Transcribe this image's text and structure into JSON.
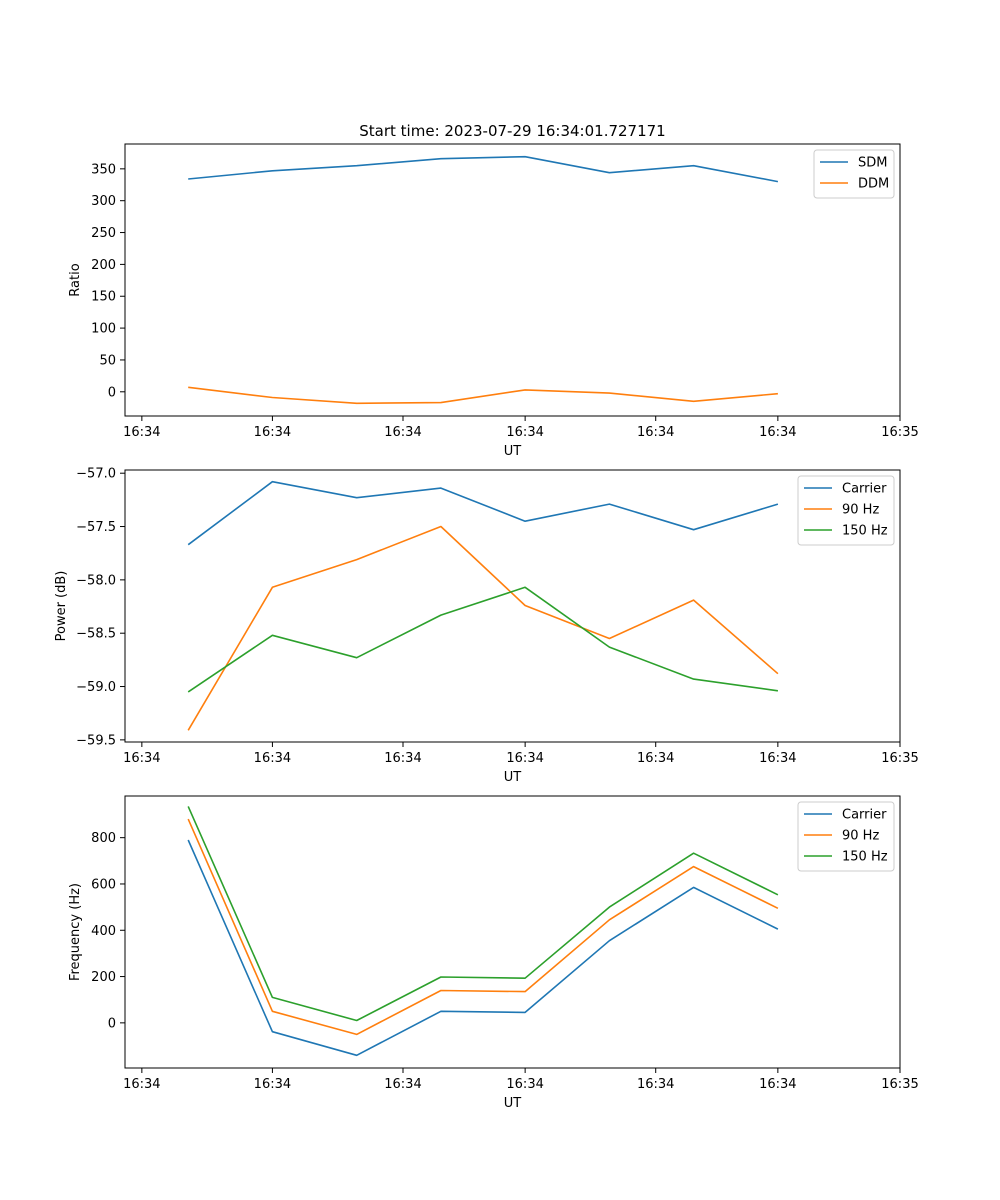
{
  "figure_title": "Start time: 2023-07-29 16:34:01.727171",
  "colors": {
    "blue": "#1f77b4",
    "orange": "#ff7f0e",
    "green": "#2ca02c"
  },
  "chart_data": [
    {
      "type": "line",
      "title": "Start time: 2023-07-29 16:34:01.727171",
      "xlabel": "UT",
      "ylabel": "Ratio",
      "x": [
        1,
        2,
        3,
        4,
        5,
        6,
        7,
        8
      ],
      "xlim": [
        0.25,
        9.45
      ],
      "xticks": [
        0.45,
        2,
        3.55,
        5,
        6.55,
        8,
        9.45
      ],
      "xticklabels": [
        "16:34",
        "16:34",
        "16:34",
        "16:34",
        "16:34",
        "16:34",
        "16:35"
      ],
      "ylim": [
        -38,
        389
      ],
      "yticks": [
        0,
        50,
        100,
        150,
        200,
        250,
        300,
        350
      ],
      "yticklabels": [
        "0",
        "50",
        "100",
        "150",
        "200",
        "250",
        "300",
        "350"
      ],
      "legend_position": "top-right",
      "series": [
        {
          "name": "SDM",
          "color": "#1f77b4",
          "values": [
            334,
            347,
            355,
            366,
            369,
            344,
            355,
            330
          ]
        },
        {
          "name": "DDM",
          "color": "#ff7f0e",
          "values": [
            7,
            -9,
            -18,
            -17,
            3,
            -2,
            -15,
            -3
          ]
        }
      ]
    },
    {
      "type": "line",
      "xlabel": "UT",
      "ylabel": "Power (dB)",
      "x": [
        1,
        2,
        3,
        4,
        5,
        6,
        7,
        8
      ],
      "xlim": [
        0.25,
        9.45
      ],
      "xticks": [
        0.45,
        2,
        3.55,
        5,
        6.55,
        8,
        9.45
      ],
      "xticklabels": [
        "16:34",
        "16:34",
        "16:34",
        "16:34",
        "16:34",
        "16:34",
        "16:35"
      ],
      "ylim": [
        -59.52,
        -56.97
      ],
      "yticks": [
        -59.5,
        -59.0,
        -58.5,
        -58.0,
        -57.5,
        -57.0
      ],
      "yticklabels": [
        "−59.5",
        "−59.0",
        "−58.5",
        "−58.0",
        "−57.5",
        "−57.0"
      ],
      "legend_position": "top-right",
      "series": [
        {
          "name": "Carrier",
          "color": "#1f77b4",
          "values": [
            -57.67,
            -57.08,
            -57.23,
            -57.14,
            -57.45,
            -57.29,
            -57.53,
            -57.29
          ]
        },
        {
          "name": "90 Hz",
          "color": "#ff7f0e",
          "values": [
            -59.41,
            -58.07,
            -57.81,
            -57.5,
            -58.24,
            -58.55,
            -58.19,
            -58.88
          ]
        },
        {
          "name": "150 Hz",
          "color": "#2ca02c",
          "values": [
            -59.05,
            -58.52,
            -58.73,
            -58.33,
            -58.07,
            -58.63,
            -58.93,
            -59.04
          ]
        }
      ]
    },
    {
      "type": "line",
      "xlabel": "UT",
      "ylabel": "Frequency (Hz)",
      "x": [
        1,
        2,
        3,
        4,
        5,
        6,
        7,
        8
      ],
      "xlim": [
        0.25,
        9.45
      ],
      "xticks": [
        0.45,
        2,
        3.55,
        5,
        6.55,
        8,
        9.45
      ],
      "xticklabels": [
        "16:34",
        "16:34",
        "16:34",
        "16:34",
        "16:34",
        "16:34",
        "16:35"
      ],
      "ylim": [
        -195,
        980
      ],
      "yticks": [
        0,
        200,
        400,
        600,
        800
      ],
      "yticklabels": [
        "0",
        "200",
        "400",
        "600",
        "800"
      ],
      "legend_position": "top-right",
      "series": [
        {
          "name": "Carrier",
          "color": "#1f77b4",
          "values": [
            790,
            -38,
            -140,
            50,
            45,
            355,
            585,
            405
          ]
        },
        {
          "name": "90 Hz",
          "color": "#ff7f0e",
          "values": [
            880,
            50,
            -50,
            140,
            135,
            445,
            675,
            495
          ]
        },
        {
          "name": "150 Hz",
          "color": "#2ca02c",
          "values": [
            935,
            110,
            10,
            198,
            193,
            500,
            733,
            553
          ]
        }
      ]
    }
  ]
}
